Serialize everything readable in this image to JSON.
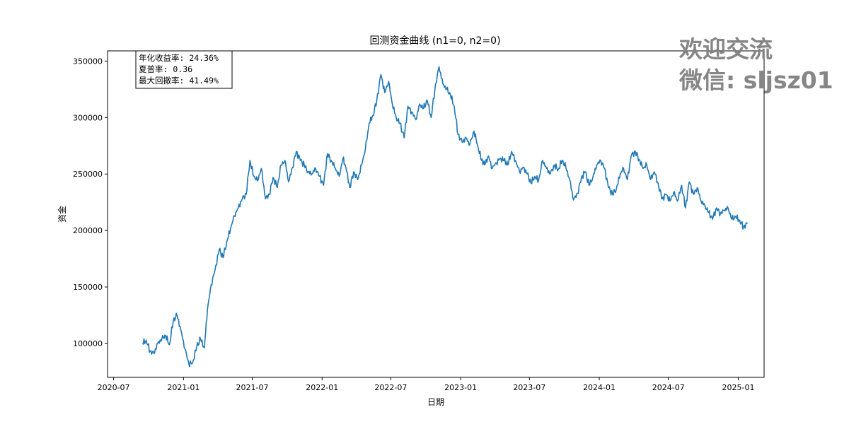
{
  "chart_data": {
    "type": "line",
    "title": "回测资金曲线 (n1=0, n2=0)",
    "xlabel": "日期",
    "ylabel": "资金",
    "x_ticks": [
      "2020-07",
      "2021-01",
      "2021-07",
      "2022-01",
      "2022-07",
      "2023-01",
      "2023-07",
      "2024-01",
      "2024-07",
      "2025-01"
    ],
    "y_ticks": [
      "100000",
      "150000",
      "200000",
      "250000",
      "300000",
      "350000"
    ],
    "xlim": [
      "2020-06-15",
      "2025-03-10"
    ],
    "ylim": [
      70000,
      359000
    ],
    "grid": false,
    "line_color": "#1f77b4",
    "series": [
      {
        "x": [
          "2020-09-15",
          "2020-09-25",
          "2020-10-05",
          "2020-10-15",
          "2020-10-25",
          "2020-11-05",
          "2020-11-15",
          "2020-11-25",
          "2020-12-05",
          "2020-12-15",
          "2020-12-25",
          "2021-01-05",
          "2021-01-15",
          "2021-01-25",
          "2021-02-05",
          "2021-02-15",
          "2021-02-25",
          "2021-03-05",
          "2021-03-15",
          "2021-03-25",
          "2021-04-05",
          "2021-04-15",
          "2021-04-25",
          "2021-05-05",
          "2021-05-15",
          "2021-05-25",
          "2021-06-05",
          "2021-06-15",
          "2021-06-25",
          "2021-07-05",
          "2021-07-15",
          "2021-07-25",
          "2021-08-05",
          "2021-08-15",
          "2021-08-25",
          "2021-09-05",
          "2021-09-15",
          "2021-09-25",
          "2021-10-05",
          "2021-10-15",
          "2021-10-25",
          "2021-11-05",
          "2021-11-15",
          "2021-11-25",
          "2021-12-05",
          "2021-12-15",
          "2021-12-25",
          "2022-01-05",
          "2022-01-15",
          "2022-01-25",
          "2022-02-05",
          "2022-02-15",
          "2022-02-25",
          "2022-03-05",
          "2022-03-15",
          "2022-03-25",
          "2022-04-05",
          "2022-04-15",
          "2022-04-25",
          "2022-05-05",
          "2022-05-15",
          "2022-05-25",
          "2022-06-05",
          "2022-06-15",
          "2022-06-25",
          "2022-07-05",
          "2022-07-15",
          "2022-07-25",
          "2022-08-05",
          "2022-08-15",
          "2022-08-25",
          "2022-09-05",
          "2022-09-15",
          "2022-09-25",
          "2022-10-05",
          "2022-10-15",
          "2022-10-25",
          "2022-11-05",
          "2022-11-15",
          "2022-11-25",
          "2022-12-05",
          "2022-12-15",
          "2022-12-25",
          "2023-01-05",
          "2023-01-15",
          "2023-01-25",
          "2023-02-05",
          "2023-02-15",
          "2023-02-25",
          "2023-03-05",
          "2023-03-15",
          "2023-03-25",
          "2023-04-05",
          "2023-04-15",
          "2023-04-25",
          "2023-05-05",
          "2023-05-15",
          "2023-05-25",
          "2023-06-05",
          "2023-06-15",
          "2023-06-25",
          "2023-07-05",
          "2023-07-15",
          "2023-07-25",
          "2023-08-05",
          "2023-08-15",
          "2023-08-25",
          "2023-09-05",
          "2023-09-15",
          "2023-09-25",
          "2023-10-05",
          "2023-10-15",
          "2023-10-25",
          "2023-11-05",
          "2023-11-15",
          "2023-11-25",
          "2023-12-05",
          "2023-12-15",
          "2023-12-25",
          "2024-01-05",
          "2024-01-15",
          "2024-01-25",
          "2024-02-05",
          "2024-02-15",
          "2024-02-25",
          "2024-03-05",
          "2024-03-15",
          "2024-03-25",
          "2024-04-05",
          "2024-04-15",
          "2024-04-25",
          "2024-05-05",
          "2024-05-15",
          "2024-05-25",
          "2024-06-05",
          "2024-06-15",
          "2024-06-25",
          "2024-07-05",
          "2024-07-15",
          "2024-07-25",
          "2024-08-05",
          "2024-08-15",
          "2024-08-25",
          "2024-09-05",
          "2024-09-15",
          "2024-09-25",
          "2024-10-05",
          "2024-10-15",
          "2024-10-25",
          "2024-11-05",
          "2024-11-15",
          "2024-11-25",
          "2024-12-05",
          "2024-12-15",
          "2024-12-25",
          "2025-01-05",
          "2025-01-15",
          "2025-01-25"
        ],
        "y": [
          100000,
          103000,
          93000,
          91000,
          100000,
          104000,
          107000,
          99000,
          120000,
          125000,
          112000,
          95000,
          82000,
          83000,
          97000,
          104000,
          96000,
          130000,
          152000,
          165000,
          183000,
          176000,
          190000,
          202000,
          213000,
          220000,
          228000,
          232000,
          262000,
          248000,
          244000,
          255000,
          228000,
          232000,
          247000,
          238000,
          258000,
          262000,
          243000,
          256000,
          270000,
          262000,
          258000,
          252000,
          250000,
          255000,
          248000,
          240000,
          268000,
          262000,
          255000,
          248000,
          264000,
          255000,
          238000,
          252000,
          245000,
          258000,
          272000,
          295000,
          302000,
          315000,
          338000,
          322000,
          332000,
          312000,
          300000,
          295000,
          282000,
          310000,
          305000,
          298000,
          312000,
          308000,
          315000,
          300000,
          325000,
          345000,
          330000,
          325000,
          320000,
          310000,
          285000,
          278000,
          282000,
          276000,
          288000,
          275000,
          262000,
          258000,
          266000,
          255000,
          260000,
          264000,
          262000,
          258000,
          270000,
          262000,
          252000,
          256000,
          250000,
          242000,
          248000,
          244000,
          262000,
          255000,
          250000,
          258000,
          254000,
          262000,
          256000,
          245000,
          227000,
          233000,
          247000,
          252000,
          240000,
          247000,
          258000,
          262000,
          255000,
          238000,
          232000,
          237000,
          250000,
          255000,
          245000,
          266000,
          270000,
          263000,
          255000,
          258000,
          245000,
          252000,
          240000,
          228000,
          232000,
          226000,
          234000,
          226000,
          240000,
          220000,
          243000,
          232000,
          238000,
          226000,
          222000,
          216000,
          210000,
          220000,
          215000,
          218000,
          220000,
          210000,
          212000,
          209000,
          203000,
          206000
        ]
      }
    ],
    "stats": {
      "line1": "年化收益率: 24.36%",
      "line2": "夏普率: 0.36",
      "line3": "最大回撤率: 41.49%"
    }
  },
  "watermark": {
    "line1": "欢迎交流",
    "line2": "微信: sljsz01"
  }
}
